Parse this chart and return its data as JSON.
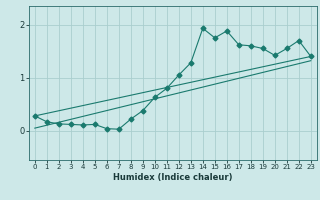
{
  "xlabel": "Humidex (Indice chaleur)",
  "ylabel": "",
  "bg_color": "#cde8e8",
  "grid_color": "#aacece",
  "line_color": "#1a7a6e",
  "xlim": [
    -0.5,
    23.5
  ],
  "ylim": [
    -0.55,
    2.35
  ],
  "xticks": [
    0,
    1,
    2,
    3,
    4,
    5,
    6,
    7,
    8,
    9,
    10,
    11,
    12,
    13,
    14,
    15,
    16,
    17,
    18,
    19,
    20,
    21,
    22,
    23
  ],
  "yticks": [
    0,
    1,
    2
  ],
  "line1_x": [
    0,
    1,
    2,
    3,
    4,
    5,
    6,
    7,
    8,
    9,
    10,
    11,
    12,
    13,
    14,
    15,
    16,
    17,
    18,
    19,
    20,
    21,
    22,
    23
  ],
  "line1_y": [
    0.28,
    0.17,
    0.13,
    0.12,
    0.11,
    0.12,
    0.04,
    0.03,
    0.22,
    0.38,
    0.63,
    0.8,
    1.05,
    1.28,
    1.93,
    1.75,
    1.88,
    1.62,
    1.6,
    1.55,
    1.42,
    1.55,
    1.7,
    1.4
  ],
  "line2_x": [
    0,
    23
  ],
  "line2_y": [
    0.28,
    1.4
  ],
  "line3_x": [
    0,
    23
  ],
  "line3_y": [
    0.05,
    1.32
  ],
  "marker_size": 2.5
}
